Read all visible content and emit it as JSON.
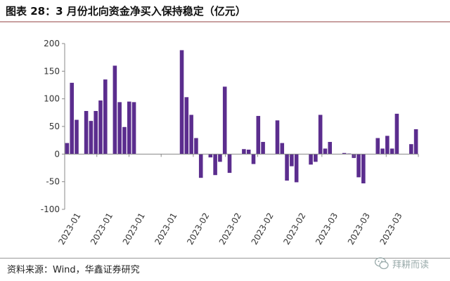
{
  "title": "图表 28：3 月份北向资金净买入保持稳定（亿元）",
  "source": "资料来源：Wind，华鑫证券研究",
  "watermark": {
    "text": "拜耕而读",
    "icon": "wechat-icon"
  },
  "colors": {
    "bar": "#5b2d8e",
    "axis": "#888888",
    "text": "#333333"
  },
  "chart_data": {
    "type": "bar",
    "ylim": [
      -100,
      200
    ],
    "yticks": [
      -100,
      -50,
      0,
      50,
      100,
      150,
      200
    ],
    "grid": false,
    "legend": "none",
    "xticklabels": [
      "2023-01",
      "2023-01",
      "2023-01",
      "2023-01",
      "2023-02",
      "2023-02",
      "2023-02",
      "2023-02",
      "2023-03",
      "2023-03",
      "2023-03"
    ],
    "values": [
      20,
      129,
      62,
      null,
      78,
      60,
      78,
      97,
      135,
      null,
      160,
      94,
      49,
      95,
      94,
      null,
      null,
      null,
      null,
      null,
      null,
      null,
      null,
      null,
      188,
      103,
      71,
      29,
      -43,
      null,
      -6,
      -38,
      -14,
      122,
      -34,
      null,
      null,
      9,
      8,
      -18,
      69,
      22,
      null,
      null,
      61,
      20,
      -48,
      -22,
      -51,
      null,
      null,
      -19,
      -14,
      71,
      10,
      22,
      null,
      null,
      2,
      1,
      -7,
      -42,
      -53,
      null,
      null,
      29,
      10,
      33,
      10,
      73,
      null,
      null,
      18,
      45
    ]
  }
}
